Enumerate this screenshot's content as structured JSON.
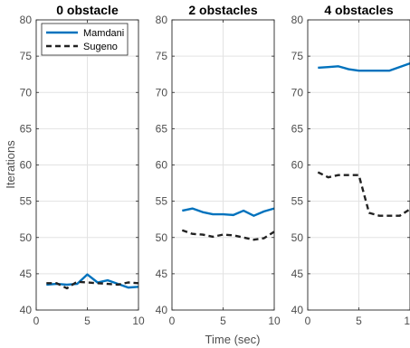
{
  "chart_data": {
    "type": "line",
    "xlabel": "Time (sec)",
    "ylabel": "Iterations",
    "xlim": [
      0,
      10
    ],
    "ylim": [
      40,
      80
    ],
    "xticks": [
      0,
      5,
      10
    ],
    "yticks": [
      40,
      45,
      50,
      55,
      60,
      65,
      70,
      75,
      80
    ],
    "grid": true,
    "legend": {
      "placement": "top-left",
      "panel": 0,
      "entries": [
        "Mamdani",
        "Sugeno"
      ]
    },
    "series_styles": [
      {
        "name": "Mamdani",
        "color": "#0072BD",
        "dash": "solid"
      },
      {
        "name": "Sugeno",
        "color": "#222222",
        "dash": "dashed"
      }
    ],
    "panels": [
      {
        "title": "0 obstacle",
        "series": [
          {
            "name": "Mamdani",
            "x": [
              1,
              2,
              3,
              4,
              5,
              6,
              7,
              8,
              9,
              10
            ],
            "values": [
              43.5,
              43.6,
              43.5,
              43.6,
              44.9,
              43.8,
              44.1,
              43.6,
              43.1,
              43.2
            ]
          },
          {
            "name": "Sugeno",
            "x": [
              1,
              2,
              3,
              4,
              5,
              6,
              7,
              8,
              9,
              10
            ],
            "values": [
              43.7,
              43.7,
              43.0,
              43.9,
              43.8,
              43.7,
              43.6,
              43.5,
              43.8,
              43.7
            ]
          }
        ]
      },
      {
        "title": "2 obstacles",
        "series": [
          {
            "name": "Mamdani",
            "x": [
              1,
              2,
              3,
              4,
              5,
              6,
              7,
              8,
              9,
              10
            ],
            "values": [
              53.7,
              54.0,
              53.5,
              53.2,
              53.2,
              53.1,
              53.7,
              53.0,
              53.6,
              54.0
            ]
          },
          {
            "name": "Sugeno",
            "x": [
              1,
              2,
              3,
              4,
              5,
              6,
              7,
              8,
              9,
              10
            ],
            "values": [
              51.0,
              50.5,
              50.4,
              50.1,
              50.4,
              50.3,
              50.0,
              49.7,
              49.9,
              50.8
            ]
          }
        ]
      },
      {
        "title": "4 obstacles",
        "series": [
          {
            "name": "Mamdani",
            "x": [
              1,
              2,
              3,
              4,
              5,
              6,
              7,
              8,
              9,
              10
            ],
            "values": [
              73.4,
              73.5,
              73.6,
              73.2,
              73.0,
              73.0,
              73.0,
              73.0,
              73.5,
              74.0
            ]
          },
          {
            "name": "Sugeno",
            "x": [
              1,
              2,
              3,
              4,
              5,
              6,
              7,
              8,
              9,
              10
            ],
            "values": [
              59.0,
              58.3,
              58.6,
              58.6,
              58.6,
              53.4,
              53.0,
              53.0,
              53.0,
              53.9
            ]
          }
        ]
      }
    ]
  }
}
